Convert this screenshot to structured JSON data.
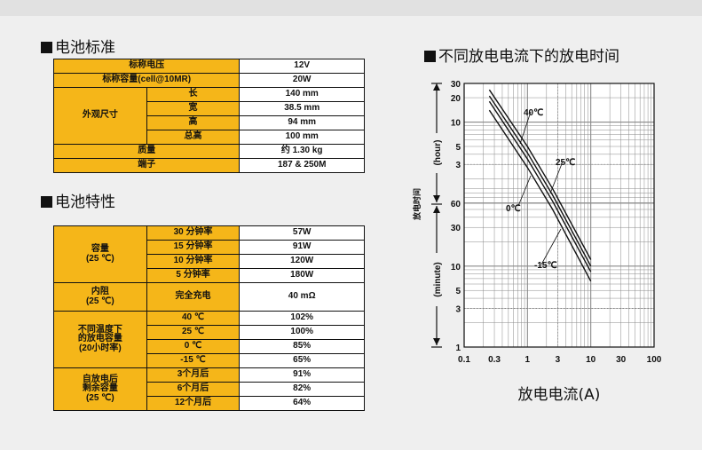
{
  "section1": {
    "title": "电池标准",
    "rows": {
      "nominal_voltage": {
        "label": "标称电压",
        "value": "12V"
      },
      "capacity": {
        "label": "标称容量(cell@10MR)",
        "value": "20W"
      },
      "dimensions": {
        "label": "外观尺寸",
        "length": {
          "label": "长",
          "value": "140 mm"
        },
        "width": {
          "label": "宽",
          "value": "38.5 mm"
        },
        "height": {
          "label": "高",
          "value": "94 mm"
        },
        "total_height": {
          "label": "总高",
          "value": "100 mm"
        }
      },
      "mass": {
        "label": "质量",
        "value": "约 1.30 kg"
      },
      "terminal": {
        "label": "端子",
        "value": "187 & 250M"
      }
    }
  },
  "section2": {
    "title": "电池特性",
    "capacity": {
      "label_line1": "容量",
      "label_line2": "(25 ℃)",
      "rows": [
        {
          "label": "30 分钟率",
          "value": "57W"
        },
        {
          "label": "15 分钟率",
          "value": "91W"
        },
        {
          "label": "10 分钟率",
          "value": "120W"
        },
        {
          "label": "5 分钟率",
          "value": "180W"
        }
      ]
    },
    "resistance": {
      "label_line1": "内阻",
      "label_line2": "(25 ℃)",
      "condition": "完全充电",
      "value": "40 mΩ"
    },
    "temperature": {
      "label_line1": "不同温度下",
      "label_line2": "的放电容量",
      "label_line3": "(20小时率)",
      "rows": [
        {
          "label": "40 ℃",
          "value": "102%"
        },
        {
          "label": "25 ℃",
          "value": "100%"
        },
        {
          "label": "0 ℃",
          "value": "85%"
        },
        {
          "label": "-15 ℃",
          "value": "65%"
        }
      ]
    },
    "self_discharge": {
      "label_line1": "自放电后",
      "label_line2": "剩余容量",
      "label_line3": "(25 ℃)",
      "rows": [
        {
          "label": "3个月后",
          "value": "91%"
        },
        {
          "label": "6个月后",
          "value": "82%"
        },
        {
          "label": "12个月后",
          "value": "64%"
        }
      ]
    }
  },
  "chart_title": "不同放电电流下的放电时间",
  "chart_data": {
    "type": "line",
    "title": "不同放电电流下的放电时间",
    "xlabel": "放电电流(A)",
    "ylabel": "放电时间",
    "y_upper_unit": "(hour)",
    "y_lower_unit": "(minute)",
    "x_scale": "log",
    "y_scale": "log",
    "xlim": [
      0.1,
      100
    ],
    "x_ticks": [
      "0.1",
      "0.3",
      "1",
      "3",
      "10",
      "30",
      "100"
    ],
    "y_ticks_hour": [
      "30",
      "20",
      "10",
      "5",
      "3"
    ],
    "y_ticks_minute": [
      "60",
      "30",
      "10",
      "5",
      "3",
      "1"
    ],
    "grid": true,
    "series": [
      {
        "name": "40℃",
        "x": [
          0.25,
          1.0,
          2.5,
          10.0
        ],
        "y_minutes": [
          1500,
          300,
          90,
          12
        ]
      },
      {
        "name": "25℃",
        "x": [
          0.25,
          1.0,
          2.5,
          10.0
        ],
        "y_minutes": [
          1260,
          250,
          75,
          10
        ]
      },
      {
        "name": "0℃",
        "x": [
          0.25,
          1.0,
          2.5,
          10.0
        ],
        "y_minutes": [
          1080,
          210,
          63,
          8.5
        ]
      },
      {
        "name": "-15℃",
        "x": [
          0.25,
          1.0,
          2.5,
          10.0
        ],
        "y_minutes": [
          840,
          165,
          50,
          6.5
        ]
      }
    ],
    "colors": {
      "curve": "#111111",
      "grid": "#8a8a8a",
      "plot_bg": "#ffffff"
    }
  }
}
